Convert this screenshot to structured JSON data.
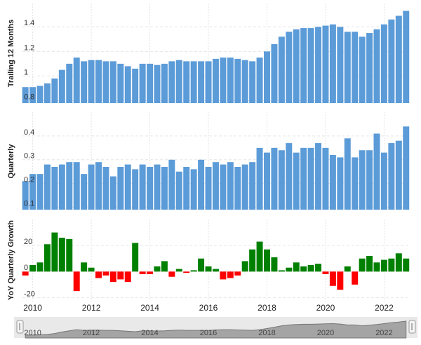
{
  "chart_data": [
    {
      "type": "bar",
      "ylabel": "Trailing 12 Months",
      "color": "#5b9bd8",
      "grid": true,
      "x": [
        2009.75,
        2010,
        2010.25,
        2010.5,
        2010.75,
        2011,
        2011.25,
        2011.5,
        2011.75,
        2012,
        2012.25,
        2012.5,
        2012.75,
        2013,
        2013.25,
        2013.5,
        2013.75,
        2014,
        2014.25,
        2014.5,
        2014.75,
        2015,
        2015.25,
        2015.5,
        2015.75,
        2016,
        2016.25,
        2016.5,
        2016.75,
        2017,
        2017.25,
        2017.5,
        2017.75,
        2018,
        2018.25,
        2018.5,
        2018.75,
        2019,
        2019.25,
        2019.5,
        2019.75,
        2020,
        2020.25,
        2020.5,
        2020.75,
        2021,
        2021.25,
        2021.5,
        2021.75,
        2022,
        2022.25,
        2022.5,
        2022.75
      ],
      "values": [
        0.91,
        0.91,
        0.92,
        0.94,
        0.98,
        1.05,
        1.1,
        1.15,
        1.12,
        1.13,
        1.13,
        1.12,
        1.12,
        1.1,
        1.08,
        1.06,
        1.1,
        1.1,
        1.09,
        1.1,
        1.12,
        1.13,
        1.12,
        1.12,
        1.12,
        1.12,
        1.14,
        1.15,
        1.15,
        1.14,
        1.13,
        1.12,
        1.15,
        1.2,
        1.26,
        1.32,
        1.36,
        1.38,
        1.39,
        1.39,
        1.4,
        1.41,
        1.42,
        1.4,
        1.36,
        1.36,
        1.32,
        1.35,
        1.38,
        1.42,
        1.46,
        1.49,
        1.53
      ],
      "xlim": [
        2009.65,
        2022.9
      ],
      "ylim": [
        0.78,
        1.59
      ],
      "yticks": [
        0.8,
        1.0,
        1.2,
        1.4
      ]
    },
    {
      "type": "bar",
      "ylabel": "Quarterly",
      "color": "#5b9bd8",
      "grid": true,
      "x": [
        2009.75,
        2010,
        2010.25,
        2010.5,
        2010.75,
        2011,
        2011.25,
        2011.5,
        2011.75,
        2012,
        2012.25,
        2012.5,
        2012.75,
        2013,
        2013.25,
        2013.5,
        2013.75,
        2014,
        2014.25,
        2014.5,
        2014.75,
        2015,
        2015.25,
        2015.5,
        2015.75,
        2016,
        2016.25,
        2016.5,
        2016.75,
        2017,
        2017.25,
        2017.5,
        2017.75,
        2018,
        2018.25,
        2018.5,
        2018.75,
        2019,
        2019.25,
        2019.5,
        2019.75,
        2020,
        2020.25,
        2020.5,
        2020.75,
        2021,
        2021.25,
        2021.5,
        2021.75,
        2022,
        2022.25,
        2022.5,
        2022.75
      ],
      "values": [
        0.21,
        0.24,
        0.24,
        0.28,
        0.27,
        0.28,
        0.29,
        0.29,
        0.24,
        0.28,
        0.29,
        0.27,
        0.23,
        0.27,
        0.28,
        0.26,
        0.28,
        0.27,
        0.28,
        0.27,
        0.3,
        0.25,
        0.27,
        0.26,
        0.3,
        0.27,
        0.29,
        0.28,
        0.29,
        0.27,
        0.28,
        0.29,
        0.35,
        0.33,
        0.35,
        0.34,
        0.37,
        0.33,
        0.35,
        0.35,
        0.37,
        0.35,
        0.32,
        0.31,
        0.39,
        0.31,
        0.34,
        0.34,
        0.41,
        0.33,
        0.37,
        0.38,
        0.44
      ],
      "xlim": [
        2009.65,
        2022.9
      ],
      "ylim": [
        0.09,
        0.5
      ],
      "yticks": [
        0.1,
        0.2,
        0.3,
        0.4
      ]
    },
    {
      "type": "signed-bar",
      "ylabel": "YoY Quarterly Growth",
      "positive_color": "#008000",
      "negative_color": "#ff0000",
      "grid": true,
      "x": [
        2009.75,
        2010,
        2010.25,
        2010.5,
        2010.75,
        2011,
        2011.25,
        2011.5,
        2011.75,
        2012,
        2012.25,
        2012.5,
        2012.75,
        2013,
        2013.25,
        2013.5,
        2013.75,
        2014,
        2014.25,
        2014.5,
        2014.75,
        2015,
        2015.25,
        2015.5,
        2015.75,
        2016,
        2016.25,
        2016.5,
        2016.75,
        2017,
        2017.25,
        2017.5,
        2017.75,
        2018,
        2018.25,
        2018.5,
        2018.75,
        2019,
        2019.25,
        2019.5,
        2019.75,
        2020,
        2020.25,
        2020.5,
        2020.75,
        2021,
        2021.25,
        2021.5,
        2021.75,
        2022,
        2022.25,
        2022.5,
        2022.75
      ],
      "values": [
        -3,
        5,
        7,
        21,
        30,
        26,
        25,
        -15,
        7,
        3,
        -5,
        -3,
        -8,
        -6,
        -8,
        22,
        -2,
        -2,
        4,
        8,
        -4,
        2,
        -1,
        1,
        10,
        4,
        2,
        -6,
        -5,
        -3,
        8,
        17,
        23,
        17,
        11,
        1,
        3,
        7,
        4,
        5,
        6,
        -2,
        -11,
        -14,
        4,
        -10,
        10,
        12,
        7,
        9,
        10,
        14,
        10
      ],
      "xlim": [
        2009.65,
        2022.9
      ],
      "ylim": [
        -23,
        40
      ],
      "yticks": [
        -20,
        0,
        20
      ],
      "xticks": [
        2010,
        2012,
        2014,
        2016,
        2018,
        2020,
        2022
      ]
    },
    {
      "type": "navigator",
      "color": "#8c8c8c",
      "xlim": [
        2009.65,
        2022.9
      ],
      "xticks": [
        2010,
        2012,
        2014,
        2016,
        2018,
        2020,
        2022
      ]
    }
  ]
}
